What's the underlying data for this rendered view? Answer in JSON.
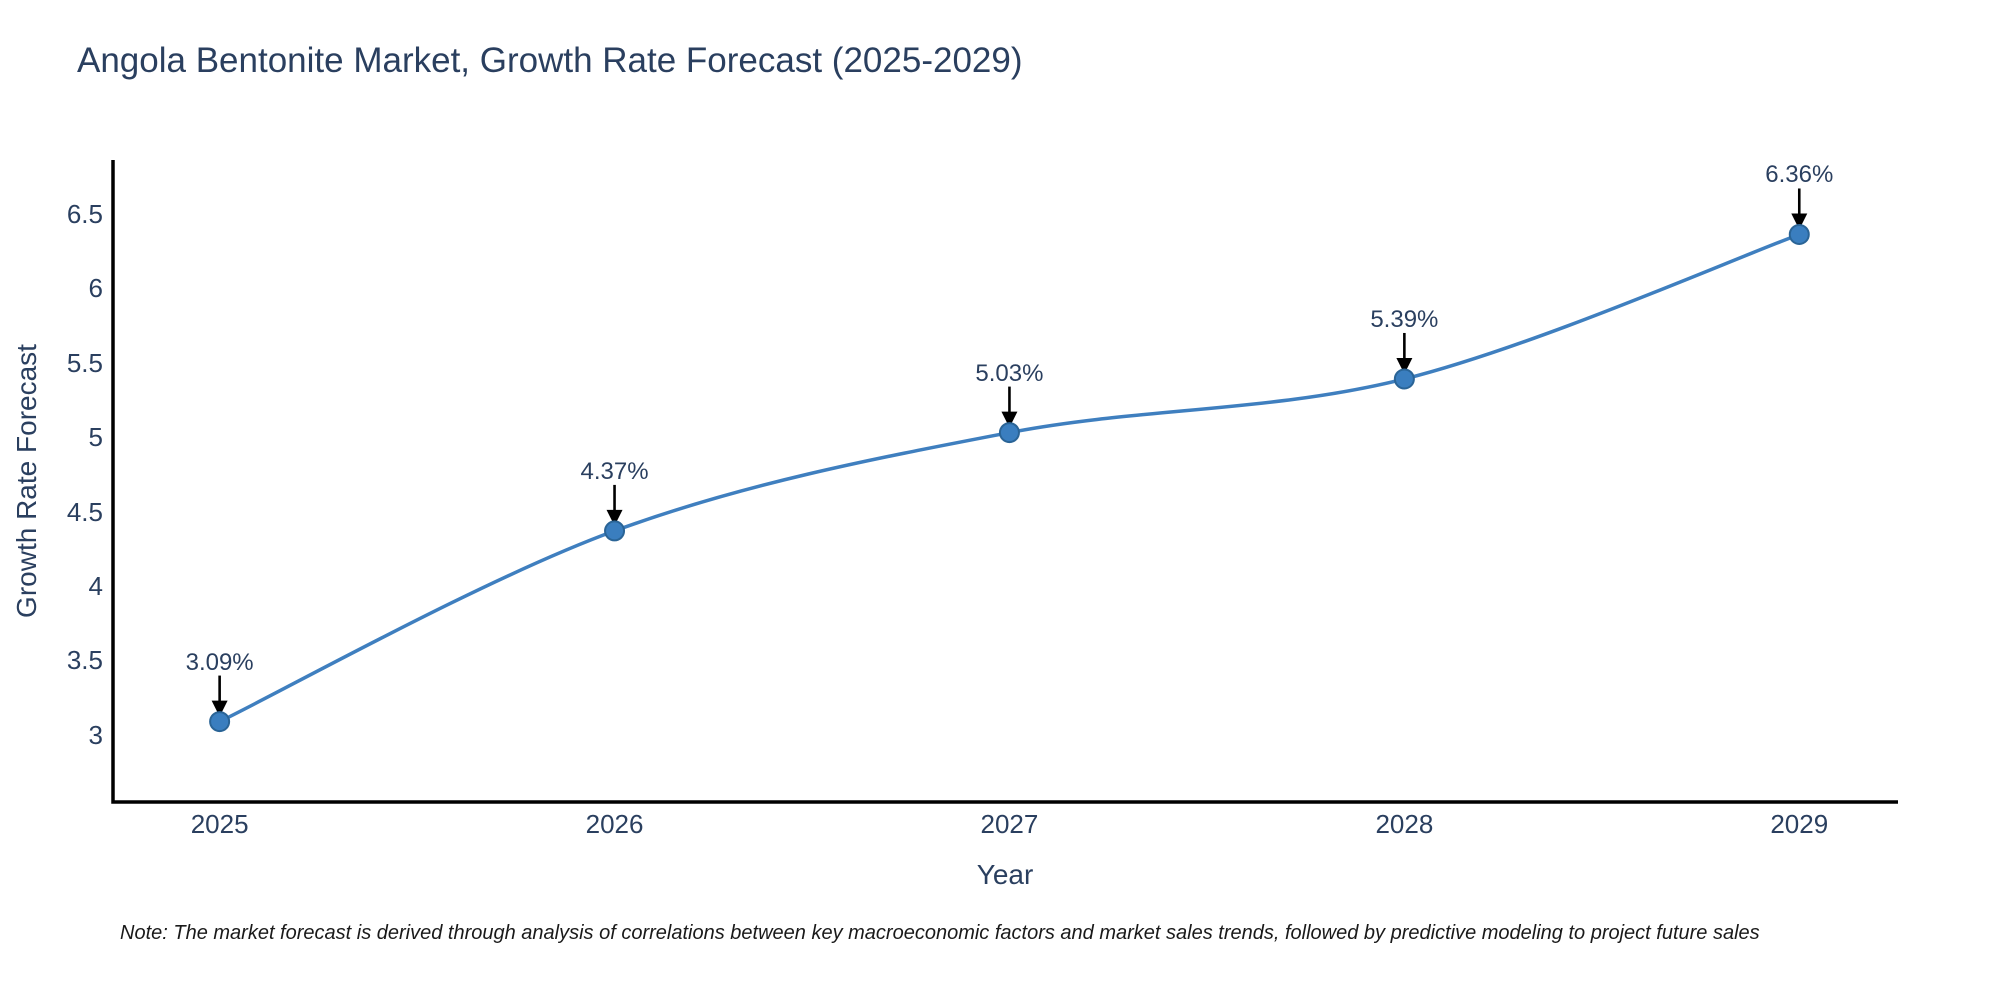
{
  "note": "Note: The market forecast is derived through analysis of correlations between key macroeconomic factors and market sales trends, followed by predictive modeling to project future sales",
  "chart_data": {
    "type": "line",
    "title": "Angola Bentonite Market, Growth Rate Forecast (2025-2029)",
    "xlabel": "Year",
    "ylabel": "Growth Rate Forecast",
    "x": [
      2025,
      2026,
      2027,
      2028,
      2029
    ],
    "values": [
      3.09,
      4.37,
      5.03,
      5.39,
      6.36
    ],
    "point_labels": [
      "3.09%",
      "4.37%",
      "5.03%",
      "5.39%",
      "6.36%"
    ],
    "ytick_values": [
      3,
      3.5,
      4,
      4.5,
      5,
      5.5,
      6,
      6.5
    ],
    "ytick_labels": [
      "3",
      "3.5",
      "4",
      "4.5",
      "5",
      "5.5",
      "6",
      "6.5"
    ],
    "xlim": [
      2024.73,
      2029.25
    ],
    "ylim": [
      2.55,
      6.86
    ],
    "line_shape": "spline",
    "grid": false,
    "legend": "none",
    "colors": {
      "line": "#3f7fbf",
      "marker_fill": "#3a7ebf",
      "marker_border": "#2a6496",
      "arrow": "#000000",
      "axis": "#000000",
      "text": "#2a3f5f"
    }
  }
}
